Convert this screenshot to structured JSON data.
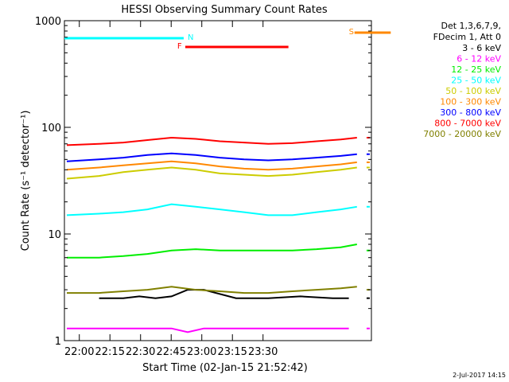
{
  "chart_data": {
    "type": "line",
    "title": "HESSI Observing Summary Count Rates",
    "xlabel": "Start Time (02-Jan-15 21:52:42)",
    "ylabel": "Count Rate (s⁻¹ detector⁻¹)",
    "yscale": "log",
    "ylim": [
      1,
      1000
    ],
    "xlim_minutes": [
      -7.3,
      30.8
    ],
    "x_ticks": [
      "22:00",
      "22:15",
      "22:30",
      "22:45",
      "23:00",
      "23:15",
      "23:30"
    ],
    "y_ticks": [
      "1",
      "10",
      "100",
      "1000"
    ],
    "legend_position": "top-right",
    "legend_header": [
      "Det 1,3,6,7,9,",
      "FDecim 1, Att 0"
    ],
    "series": [
      {
        "name": "3 - 6 keV",
        "color": "#000000",
        "segments": [
          {
            "x": [
              -3,
              0,
              2,
              4,
              6,
              8,
              10,
              14,
              18,
              22,
              26,
              28
            ],
            "y": [
              2.5,
              2.5,
              2.6,
              2.5,
              2.6,
              3.0,
              3.0,
              2.5,
              2.5,
              2.6,
              2.5,
              2.5
            ]
          },
          {
            "x": [
              30.4
            ],
            "y": [
              2.5
            ]
          }
        ]
      },
      {
        "name": "6 - 12 keV",
        "color": "#ff00ff",
        "segments": [
          {
            "x": [
              -7,
              0,
              2,
              4,
              6,
              8,
              10,
              12,
              14,
              16,
              18,
              20,
              22,
              24,
              26,
              28
            ],
            "y": [
              1.3,
              1.3,
              1.3,
              1.3,
              1.3,
              1.2,
              1.3,
              1.3,
              1.3,
              1.3,
              1.3,
              1.3,
              1.3,
              1.3,
              1.3,
              1.3
            ]
          },
          {
            "x": [
              30.4
            ],
            "y": [
              1.3
            ]
          }
        ]
      },
      {
        "name": "12 - 25 keV",
        "color": "#00ee00",
        "segments": [
          {
            "x": [
              -7,
              -3,
              0,
              3,
              6,
              9,
              12,
              15,
              18,
              21,
              24,
              27,
              29
            ],
            "y": [
              6,
              6,
              6.2,
              6.5,
              7,
              7.2,
              7,
              7,
              7,
              7,
              7.2,
              7.5,
              8
            ]
          },
          {
            "x": [
              30.4
            ],
            "y": [
              7
            ]
          }
        ]
      },
      {
        "name": "25 - 50 keV",
        "color": "#00ffff",
        "segments": [
          {
            "x": [
              -7,
              -3,
              0,
              3,
              6,
              9,
              12,
              15,
              18,
              21,
              24,
              27,
              29
            ],
            "y": [
              15,
              15.5,
              16,
              17,
              19,
              18,
              17,
              16,
              15,
              15,
              16,
              17,
              18
            ]
          },
          {
            "x": [
              30.4
            ],
            "y": [
              18
            ]
          }
        ]
      },
      {
        "name": "50 - 100 keV",
        "color": "#cccc00",
        "segments": [
          {
            "x": [
              -7,
              -3,
              0,
              3,
              6,
              9,
              12,
              15,
              18,
              21,
              24,
              27,
              29
            ],
            "y": [
              33,
              35,
              38,
              40,
              42,
              40,
              37,
              36,
              35,
              36,
              38,
              40,
              42
            ]
          },
          {
            "x": [
              30.4
            ],
            "y": [
              42
            ]
          }
        ]
      },
      {
        "name": "100 - 300 keV",
        "color": "#ff8800",
        "segments": [
          {
            "x": [
              -7,
              -3,
              0,
              3,
              6,
              9,
              12,
              15,
              18,
              21,
              24,
              27,
              29
            ],
            "y": [
              40,
              42,
              44,
              46,
              48,
              46,
              43,
              41,
              40,
              41,
              43,
              45,
              47
            ]
          },
          {
            "x": [
              30.4
            ],
            "y": [
              47
            ]
          }
        ]
      },
      {
        "name": "300 - 800 keV",
        "color": "#0000ff",
        "segments": [
          {
            "x": [
              -7,
              -3,
              0,
              3,
              6,
              9,
              12,
              15,
              18,
              21,
              24,
              27,
              29
            ],
            "y": [
              48,
              50,
              52,
              55,
              57,
              55,
              52,
              50,
              49,
              50,
              52,
              54,
              56
            ]
          },
          {
            "x": [
              30.4
            ],
            "y": [
              56
            ]
          }
        ]
      },
      {
        "name": "800 - 7000 keV",
        "color": "#ff0000",
        "segments": [
          {
            "x": [
              -7,
              -3,
              0,
              3,
              6,
              9,
              12,
              15,
              18,
              21,
              24,
              27,
              29
            ],
            "y": [
              68,
              70,
              72,
              76,
              80,
              78,
              74,
              72,
              70,
              71,
              74,
              77,
              80
            ]
          },
          {
            "x": [
              30.4
            ],
            "y": [
              80
            ]
          }
        ]
      },
      {
        "name": "7000 - 20000 keV",
        "color": "#808000",
        "segments": [
          {
            "x": [
              -7,
              -3,
              0,
              3,
              6,
              9,
              12,
              15,
              18,
              21,
              24,
              27,
              29
            ],
            "y": [
              2.8,
              2.8,
              2.9,
              3.0,
              3.2,
              3.0,
              2.9,
              2.8,
              2.8,
              2.9,
              3.0,
              3.1,
              3.2
            ]
          },
          {
            "x": [
              30.4
            ],
            "y": [
              3.0
            ]
          }
        ]
      }
    ],
    "flag_bars": [
      {
        "label": "N",
        "color": "#00ffff"
      },
      {
        "label": "F",
        "color": "#ff0000"
      },
      {
        "label": "S",
        "color": "#ff8800"
      }
    ],
    "footer_date": "2-Jul-2017 14:15"
  }
}
